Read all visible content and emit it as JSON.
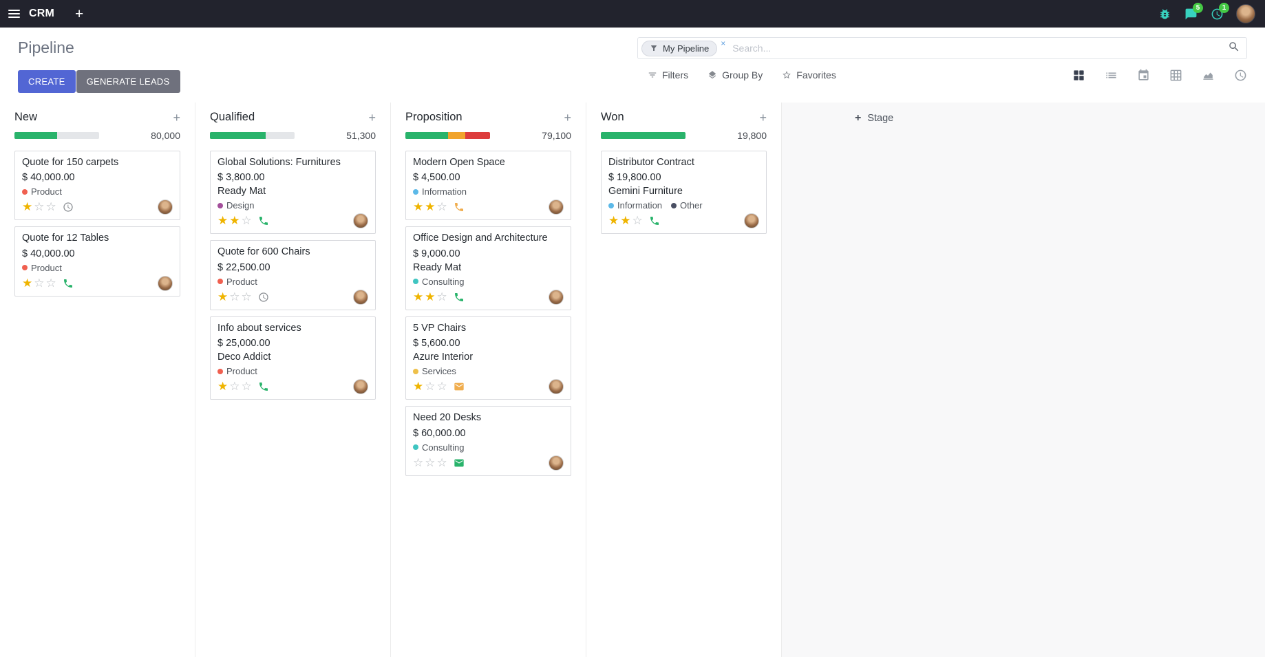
{
  "icons": {
    "plus": "+",
    "star_filled": "★",
    "star_empty": "☆",
    "facet_remove": "×"
  },
  "navbar": {
    "app_name": "CRM",
    "messages_badge": "5",
    "activities_badge": "1"
  },
  "control_panel": {
    "breadcrumb": "Pipeline",
    "buttons": {
      "create": "CREATE",
      "generate_leads": "GENERATE LEADS"
    },
    "search": {
      "facet_label": "My Pipeline",
      "placeholder": "Search..."
    },
    "menus": {
      "filters": "Filters",
      "group_by": "Group By",
      "favorites": "Favorites"
    }
  },
  "kanban": {
    "add_stage": "Stage",
    "columns": [
      {
        "name": "New",
        "amount": "80,000",
        "progress": [
          {
            "color": "#29b36b",
            "pct": 50
          }
        ],
        "cards": [
          {
            "title": "Quote for 150 carpets",
            "amount": "$ 40,000.00",
            "partner": "",
            "tags": [
              {
                "name": "Product",
                "color": "#f06050"
              }
            ],
            "stars": 1,
            "activity": {
              "icon": "clock",
              "color": "#8b8f94"
            }
          },
          {
            "title": "Quote for 12 Tables",
            "amount": "$ 40,000.00",
            "partner": "",
            "tags": [
              {
                "name": "Product",
                "color": "#f06050"
              }
            ],
            "stars": 1,
            "activity": {
              "icon": "phone",
              "color": "#29b36b"
            }
          }
        ]
      },
      {
        "name": "Qualified",
        "amount": "51,300",
        "progress": [
          {
            "color": "#29b36b",
            "pct": 66
          }
        ],
        "cards": [
          {
            "title": "Global Solutions: Furnitures",
            "amount": "$ 3,800.00",
            "partner": "Ready Mat",
            "tags": [
              {
                "name": "Design",
                "color": "#a34f9b"
              }
            ],
            "stars": 2,
            "activity": {
              "icon": "phone",
              "color": "#29b36b"
            }
          },
          {
            "title": "Quote for 600 Chairs",
            "amount": "$ 22,500.00",
            "partner": "",
            "tags": [
              {
                "name": "Product",
                "color": "#f06050"
              }
            ],
            "stars": 1,
            "activity": {
              "icon": "clock",
              "color": "#8b8f94"
            }
          },
          {
            "title": "Info about services",
            "amount": "$ 25,000.00",
            "partner": "Deco Addict",
            "tags": [
              {
                "name": "Product",
                "color": "#f06050"
              }
            ],
            "stars": 1,
            "activity": {
              "icon": "phone",
              "color": "#29b36b"
            }
          }
        ]
      },
      {
        "name": "Proposition",
        "amount": "79,100",
        "progress": [
          {
            "color": "#29b36b",
            "pct": 50
          },
          {
            "color": "#f1a42c",
            "pct": 21
          },
          {
            "color": "#dd3c3c",
            "pct": 29
          }
        ],
        "cards": [
          {
            "title": "Modern Open Space",
            "amount": "$ 4,500.00",
            "partner": "",
            "tags": [
              {
                "name": "Information",
                "color": "#5cb9e8"
              }
            ],
            "stars": 2,
            "activity": {
              "icon": "phone",
              "color": "#f0ad4e"
            }
          },
          {
            "title": "Office Design and Architecture",
            "amount": "$ 9,000.00",
            "partner": "Ready Mat",
            "tags": [
              {
                "name": "Consulting",
                "color": "#3fc5c1"
              }
            ],
            "stars": 2,
            "activity": {
              "icon": "phone",
              "color": "#29b36b"
            }
          },
          {
            "title": "5 VP Chairs",
            "amount": "$ 5,600.00",
            "partner": "Azure Interior",
            "tags": [
              {
                "name": "Services",
                "color": "#eec049"
              }
            ],
            "stars": 1,
            "activity": {
              "icon": "mail",
              "color": "#f0ad4e"
            }
          },
          {
            "title": "Need 20 Desks",
            "amount": "$ 60,000.00",
            "partner": "",
            "tags": [
              {
                "name": "Consulting",
                "color": "#3fc5c1"
              }
            ],
            "stars": 0,
            "activity": {
              "icon": "mail",
              "color": "#29b36b"
            }
          }
        ]
      },
      {
        "name": "Won",
        "amount": "19,800",
        "progress": [
          {
            "color": "#29b36b",
            "pct": 100
          }
        ],
        "cards": [
          {
            "title": "Distributor Contract",
            "amount": "$ 19,800.00",
            "partner": "Gemini Furniture",
            "tags": [
              {
                "name": "Information",
                "color": "#5cb9e8"
              },
              {
                "name": "Other",
                "color": "#4a4f63"
              }
            ],
            "stars": 2,
            "activity": {
              "icon": "phone",
              "color": "#29b36b"
            }
          }
        ]
      }
    ]
  },
  "colors": {
    "navbar_bg": "#22232d",
    "primary": "#5266d4",
    "secondary": "#6f717d",
    "success": "#29b36b",
    "warning": "#f0ad4e",
    "danger": "#dd3c3c",
    "star": "#efb400"
  }
}
